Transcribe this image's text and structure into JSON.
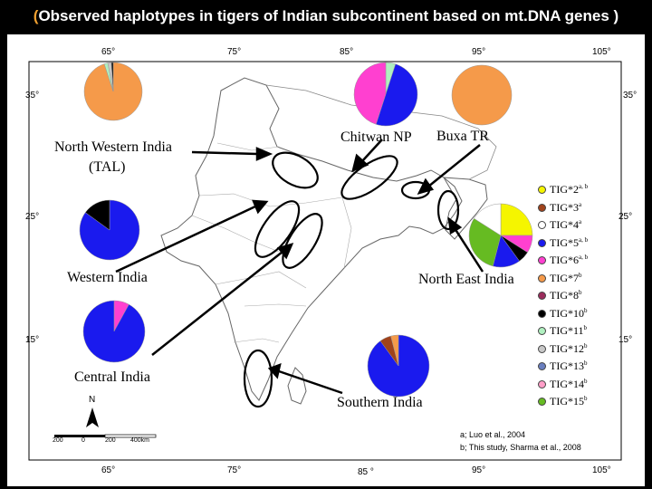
{
  "title": {
    "open": "(",
    "text": "Observed haplotypes in tigers of Indian subcontinent based on mt.DNA genes ",
    "close": ")"
  },
  "longitudes_top": [
    "65°",
    "75°",
    "85°",
    "95°",
    "105°"
  ],
  "longitudes_bottom": [
    "65°",
    "75°",
    "85 °",
    "95°",
    "105°"
  ],
  "latitudes": [
    "35°",
    "25°",
    "15°"
  ],
  "regions": {
    "north_western": "North Western India",
    "north_western_sub": "(TAL)",
    "chitwan": "Chitwan NP",
    "buxa": "Buxa TR",
    "western": "Western India",
    "north_east": "North East India",
    "central": "Central India",
    "southern": "Southern India"
  },
  "legend": [
    {
      "name": "TIG*2",
      "sup": "a, b",
      "color": "#f5f500"
    },
    {
      "name": "TIG*3",
      "sup": "a",
      "color": "#a0431c"
    },
    {
      "name": "TIG*4",
      "sup": "a",
      "color": "#ffffff"
    },
    {
      "name": "TIG*5",
      "sup": "a, b",
      "color": "#1a1aee"
    },
    {
      "name": "TIG*6",
      "sup": "a, b",
      "color": "#ff40d0"
    },
    {
      "name": "TIG*7",
      "sup": "b",
      "color": "#f59a4a"
    },
    {
      "name": "TIG*8",
      "sup": "b",
      "color": "#9b2c5c"
    },
    {
      "name": "TIG*10",
      "sup": "b",
      "color": "#000000"
    },
    {
      "name": "TIG*11",
      "sup": "b",
      "color": "#b0f0c0"
    },
    {
      "name": "TIG*12",
      "sup": "b",
      "color": "#c8c8c8"
    },
    {
      "name": "TIG*13",
      "sup": "b",
      "color": "#6a7fbf"
    },
    {
      "name": "TIG*14",
      "sup": "b",
      "color": "#ff9ec8"
    },
    {
      "name": "TIG*15",
      "sup": "b",
      "color": "#66bb22"
    }
  ],
  "references": {
    "a": "a; Luo et al., 2004",
    "b": "b; This study, Sharma et al., 2008"
  },
  "compass": "N",
  "scale_labels": [
    "200",
    "0",
    "200",
    "400km"
  ],
  "pies": {
    "north_western": [
      {
        "haplotype": "TIG*7",
        "value": 95,
        "color": "#f59a4a"
      },
      {
        "haplotype": "TIG*11",
        "value": 2,
        "color": "#b0f0c0"
      },
      {
        "haplotype": "TIG*12",
        "value": 2,
        "color": "#c8c8c8"
      },
      {
        "haplotype": "TIG*10",
        "value": 1,
        "color": "#000000"
      }
    ],
    "chitwan": [
      {
        "haplotype": "TIG*11",
        "value": 5,
        "color": "#b0f0c0"
      },
      {
        "haplotype": "TIG*5",
        "value": 50,
        "color": "#1a1aee"
      },
      {
        "haplotype": "TIG*6",
        "value": 45,
        "color": "#ff40d0"
      }
    ],
    "buxa": [
      {
        "haplotype": "TIG*7",
        "value": 100,
        "color": "#f59a4a"
      }
    ],
    "western": [
      {
        "haplotype": "TIG*5",
        "value": 85,
        "color": "#1a1aee"
      },
      {
        "haplotype": "TIG*10",
        "value": 15,
        "color": "#000000"
      }
    ],
    "north_east": [
      {
        "haplotype": "TIG*2",
        "value": 25,
        "color": "#f5f500"
      },
      {
        "haplotype": "TIG*6",
        "value": 9,
        "color": "#ff40d0"
      },
      {
        "haplotype": "TIG*10",
        "value": 6,
        "color": "#000000"
      },
      {
        "haplotype": "TIG*5",
        "value": 14,
        "color": "#1a1aee"
      },
      {
        "haplotype": "TIG*15",
        "value": 30,
        "color": "#66bb22"
      },
      {
        "haplotype": "TIG*4",
        "value": 16,
        "color": "#ffffff"
      }
    ],
    "central": [
      {
        "haplotype": "TIG*6",
        "value": 8,
        "color": "#ff40d0"
      },
      {
        "haplotype": "TIG*5",
        "value": 92,
        "color": "#1a1aee"
      }
    ],
    "southern": [
      {
        "haplotype": "TIG*5",
        "value": 90,
        "color": "#1a1aee"
      },
      {
        "haplotype": "TIG*3",
        "value": 6,
        "color": "#a0431c"
      },
      {
        "haplotype": "TIG*7",
        "value": 4,
        "color": "#f59a4a"
      }
    ]
  }
}
